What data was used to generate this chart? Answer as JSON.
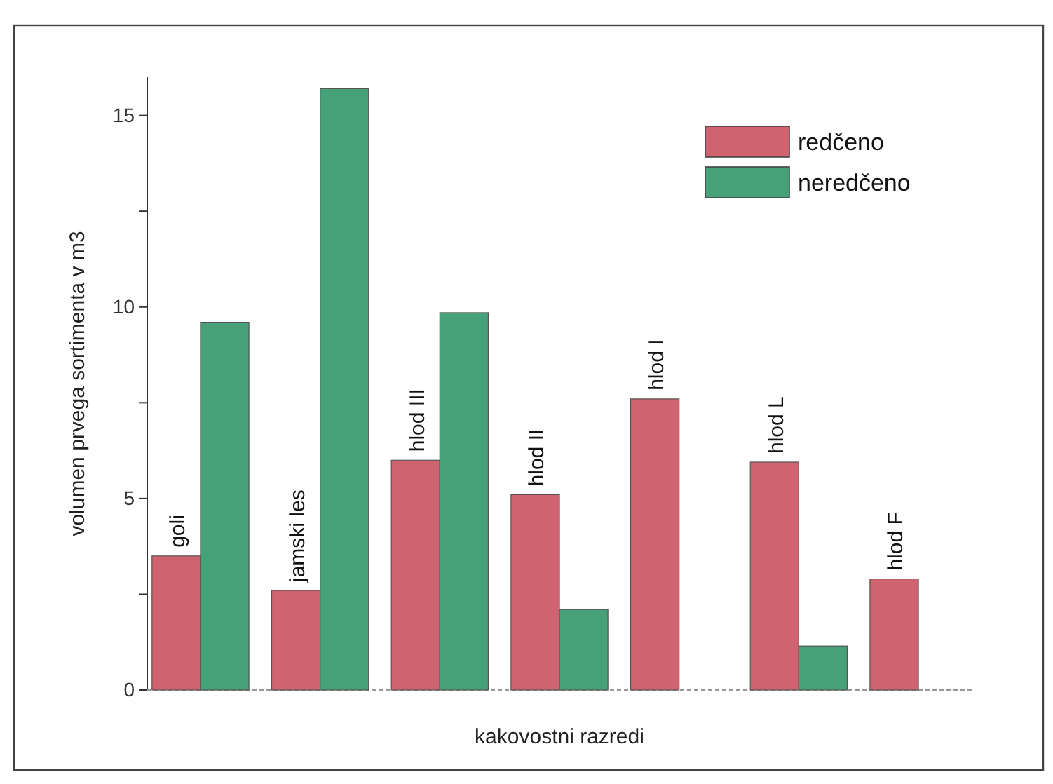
{
  "chart_data": {
    "type": "bar",
    "xlabel": "kakovostni razredi",
    "ylabel": "volumen prvega sortimenta v m3",
    "categories": [
      "goli",
      "jamski les",
      "hlod III",
      "hlod II",
      "hlod I",
      "hlod L",
      "hlod F"
    ],
    "series": [
      {
        "name": "redčeno",
        "color": "#cf6470",
        "values": [
          3.5,
          2.6,
          6.0,
          5.1,
          7.6,
          5.95,
          2.9
        ]
      },
      {
        "name": "neredčeno",
        "color": "#46a078",
        "values": [
          9.6,
          15.7,
          9.85,
          2.1,
          null,
          1.15,
          null
        ]
      }
    ],
    "ylim": [
      0,
      16
    ],
    "yticks": [
      0,
      {
        "value": 2.5,
        "label": null
      },
      5,
      {
        "value": 7.5,
        "label": null
      },
      10,
      {
        "value": 12.5,
        "label": null
      },
      15
    ],
    "legend": "top right",
    "grid": false
  }
}
